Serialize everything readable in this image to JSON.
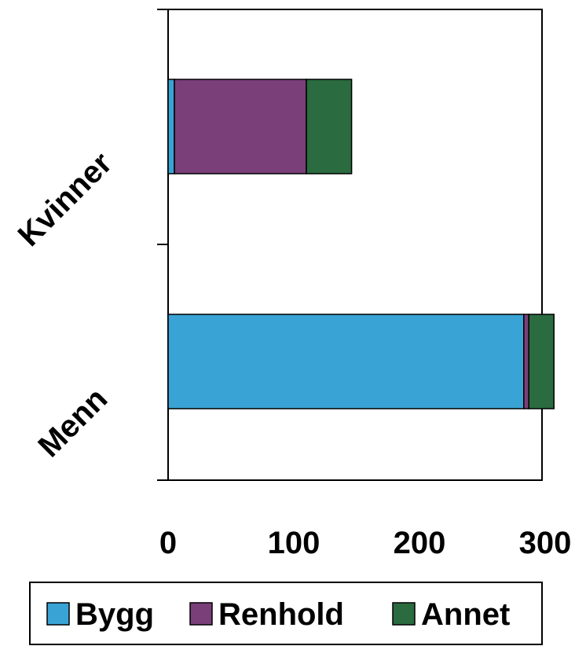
{
  "chart_data": {
    "type": "bar",
    "orientation": "horizontal",
    "stacked": true,
    "categories": [
      "Kvinner",
      "Menn"
    ],
    "series": [
      {
        "name": "Bygg",
        "color": "#3aa3d5",
        "values": [
          5,
          283
        ]
      },
      {
        "name": "Renhold",
        "color": "#7a3f78",
        "values": [
          105,
          4
        ]
      },
      {
        "name": "Annet",
        "color": "#2a6b3f",
        "values": [
          36,
          20
        ]
      }
    ],
    "xlim": [
      0,
      300
    ],
    "x_ticks": [
      "0",
      "100",
      "200",
      "300"
    ],
    "grid": false,
    "legend": "bottom"
  }
}
